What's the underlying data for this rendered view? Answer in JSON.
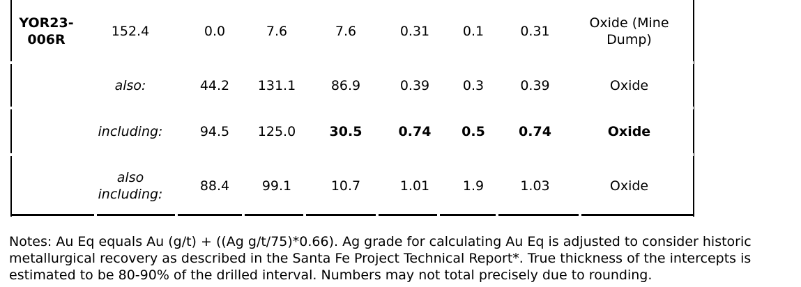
{
  "rows": [
    {
      "hole_id": "YOR23-\n006R",
      "label": "152.4",
      "from": "0.0",
      "to": "7.6",
      "length": "7.6",
      "au": "0.31",
      "ag": "0.1",
      "au_eq": "0.31",
      "type": "Oxide (Mine\nDump)"
    },
    {
      "hole_id": "",
      "label": "also:",
      "from": "44.2",
      "to": "131.1",
      "length": "86.9",
      "au": "0.39",
      "ag": "0.3",
      "au_eq": "0.39",
      "type": "Oxide"
    },
    {
      "hole_id": "",
      "label": "including:",
      "from": "94.5",
      "to": "125.0",
      "length": "30.5",
      "au": "0.74",
      "ag": "0.5",
      "au_eq": "0.74",
      "type": "Oxide"
    },
    {
      "hole_id": "",
      "label": "also\nincluding:",
      "from": "88.4",
      "to": "99.1",
      "length": "10.7",
      "au": "1.01",
      "ag": "1.9",
      "au_eq": "1.03",
      "type": "Oxide"
    }
  ],
  "notes": "Notes: Au Eq equals Au (g/t) + ((Ag g/t/75)*0.66). Ag grade for calculating Au Eq is adjusted to consider historic metallurgical recovery as described in the Santa Fe Project Technical Report*. True thickness of the intercepts is estimated to be 80-90% of the drilled interval. Numbers may not total precisely due to rounding."
}
